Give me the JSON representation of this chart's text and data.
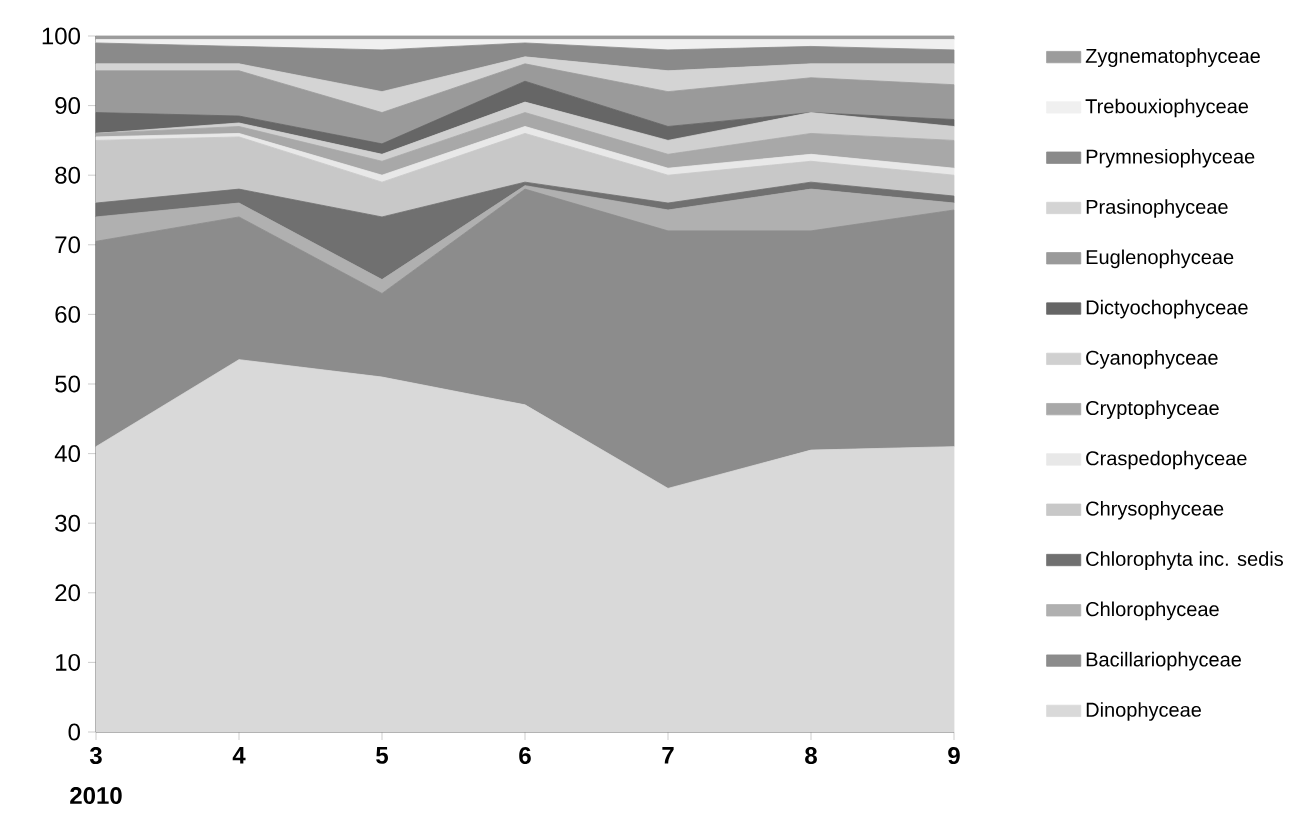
{
  "chart_data": {
    "type": "area",
    "stacked": true,
    "categories": [
      "3",
      "4",
      "5",
      "6",
      "7",
      "8",
      "9"
    ],
    "ylim": [
      0,
      100
    ],
    "yticks": [
      0,
      10,
      20,
      30,
      40,
      50,
      60,
      70,
      80,
      90,
      100
    ],
    "legend": "right",
    "annotations": [
      "2010"
    ],
    "series": [
      {
        "name": "Dinophyceae",
        "color": "#d9d9d9",
        "values": [
          41,
          53.5,
          51,
          47,
          35,
          40.5,
          41
        ]
      },
      {
        "name": "Bacillariophyceae",
        "color": "#8c8c8c",
        "values": [
          29.5,
          20.5,
          12,
          31,
          37,
          31.5,
          34
        ]
      },
      {
        "name": "Chlorophyceae",
        "color": "#b0b0b0",
        "values": [
          3.5,
          2,
          2,
          0.5,
          3,
          6,
          1
        ]
      },
      {
        "name": "Chlorophyta inc. sedis",
        "color": "#707070",
        "values": [
          2,
          2,
          9,
          0.5,
          1,
          1,
          1
        ]
      },
      {
        "name": "Chrysophyceae",
        "color": "#c8c8c8",
        "values": [
          9,
          7.5,
          5,
          7,
          4,
          3,
          3
        ]
      },
      {
        "name": "Craspedophyceae",
        "color": "#e8e8e8",
        "values": [
          0.5,
          0.5,
          1,
          1,
          1,
          1,
          1
        ]
      },
      {
        "name": "Cryptophyceae",
        "color": "#a8a8a8",
        "values": [
          0.5,
          1,
          2,
          2,
          2,
          3,
          4
        ]
      },
      {
        "name": "Cyanophyceae",
        "color": "#d0d0d0",
        "values": [
          0,
          0.5,
          1,
          1.5,
          2,
          3,
          2
        ]
      },
      {
        "name": "Dictyochophyceae",
        "color": "#666666",
        "values": [
          3,
          1,
          1.5,
          3,
          2,
          0,
          1
        ]
      },
      {
        "name": "Euglenophyceae",
        "color": "#9a9a9a",
        "values": [
          6,
          6.5,
          4.5,
          2.5,
          5,
          5,
          5
        ]
      },
      {
        "name": "Prasinophyceae",
        "color": "#d4d4d4",
        "values": [
          1,
          1,
          3,
          1,
          3,
          2,
          3
        ]
      },
      {
        "name": "Prymnesiophyceae",
        "color": "#8a8a8a",
        "values": [
          3,
          2.5,
          6,
          2,
          3,
          2.5,
          2
        ]
      },
      {
        "name": "Trebouxiophyceae",
        "color": "#f0f0f0",
        "values": [
          0.5,
          1,
          1.5,
          0.5,
          1.5,
          1,
          1.5
        ]
      },
      {
        "name": "Zygnematophyceae",
        "color": "#9c9c9c",
        "values": [
          0.5,
          0.5,
          0.5,
          0.5,
          0.5,
          0.5,
          0.5
        ]
      }
    ]
  }
}
